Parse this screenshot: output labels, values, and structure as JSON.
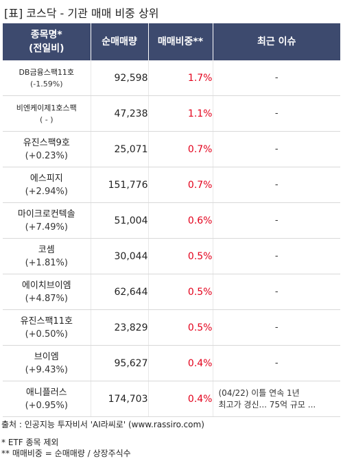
{
  "title": "[표] 코스닥 - 기관 매매 비중 상위",
  "headers": {
    "name_line1": "종목명*",
    "name_line2": "(전일비)",
    "volume": "순매매량",
    "ratio": "매매비중**",
    "issue": "최근 이슈"
  },
  "rows": [
    {
      "name": "DB금융스팩11호",
      "change": "(-1.59%)",
      "volume": "92,598",
      "ratio": "1.7%",
      "issue": "-"
    },
    {
      "name": "비엔케이제1호스팩",
      "change": "( - )",
      "volume": "47,238",
      "ratio": "1.1%",
      "issue": "-"
    },
    {
      "name": "유진스팩9호",
      "change": "(+0.23%)",
      "volume": "25,071",
      "ratio": "0.7%",
      "issue": "-"
    },
    {
      "name": "에스피지",
      "change": "(+2.94%)",
      "volume": "151,776",
      "ratio": "0.7%",
      "issue": "-"
    },
    {
      "name": "마이크로컨텍솔",
      "change": "(+7.49%)",
      "volume": "51,004",
      "ratio": "0.6%",
      "issue": "-"
    },
    {
      "name": "코셈",
      "change": "(+1.81%)",
      "volume": "30,044",
      "ratio": "0.5%",
      "issue": "-"
    },
    {
      "name": "에이치브이엠",
      "change": "(+4.87%)",
      "volume": "62,644",
      "ratio": "0.5%",
      "issue": "-"
    },
    {
      "name": "유진스팩11호",
      "change": "(+0.50%)",
      "volume": "23,829",
      "ratio": "0.5%",
      "issue": "-"
    },
    {
      "name": "브이엠",
      "change": "(+9.43%)",
      "volume": "95,627",
      "ratio": "0.4%",
      "issue": "-"
    },
    {
      "name": "애니플러스",
      "change": "(+0.95%)",
      "volume": "174,703",
      "ratio": "0.4%",
      "issue_line1": "(04/22) 이틀 연속 1년",
      "issue_line2": "최고가 경신... 75억 규모 ..."
    }
  ],
  "footer": {
    "source": "출처 : 인공지능 투자비서 'AI라씨로' (www.rassiro.com)",
    "note1": "* ETF 종목 제외",
    "note2": "** 매매비중 = 순매매량 / 상장주식수"
  }
}
